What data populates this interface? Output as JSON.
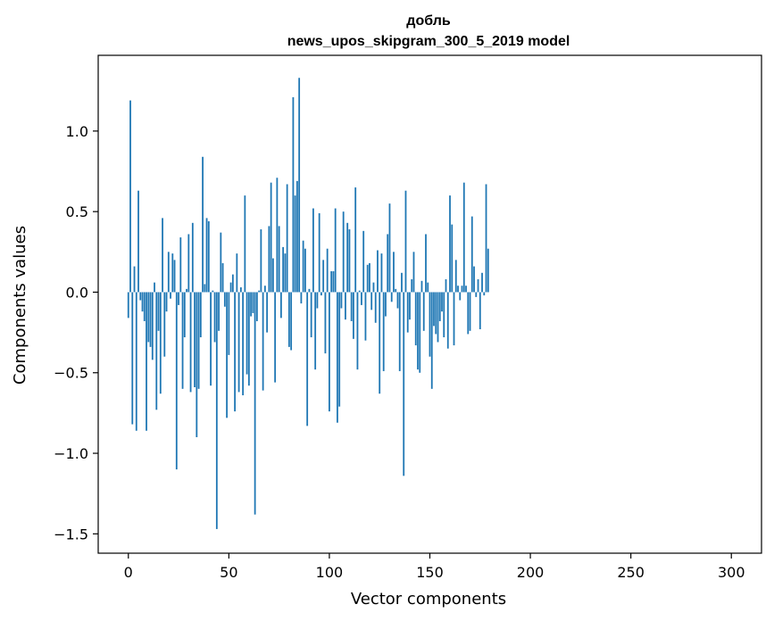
{
  "chart_data": {
    "type": "bar",
    "title": "добль",
    "subtitle": "news_upos_skipgram_300_5_2019 model",
    "xlabel": "Vector components",
    "ylabel": "Components values",
    "xlim": [
      -15,
      315
    ],
    "ylim": [
      -1.62,
      1.47
    ],
    "xticks": [
      0,
      50,
      100,
      150,
      200,
      250,
      300
    ],
    "xtick_labels": [
      "0",
      "50",
      "100",
      "150",
      "200",
      "250",
      "300"
    ],
    "yticks": [
      -1.5,
      -1.0,
      -0.5,
      0.0,
      0.5,
      1.0
    ],
    "ytick_labels": [
      "−1.5",
      "−1.0",
      "−0.5",
      "0.0",
      "0.5",
      "1.0"
    ],
    "bar_color": "#1f77b4",
    "grid": false,
    "legend": "none",
    "values": [
      -0.16,
      1.19,
      -0.82,
      0.16,
      -0.86,
      0.63,
      -0.05,
      -0.12,
      -0.18,
      -0.86,
      -0.31,
      -0.34,
      -0.42,
      0.06,
      -0.73,
      -0.24,
      -0.63,
      0.46,
      -0.4,
      -0.12,
      0.25,
      -0.04,
      0.24,
      0.2,
      -1.1,
      -0.08,
      0.34,
      -0.6,
      -0.28,
      0.02,
      0.36,
      -0.62,
      0.43,
      -0.59,
      -0.9,
      -0.6,
      -0.28,
      0.84,
      0.05,
      0.46,
      0.44,
      -0.58,
      0.01,
      -0.31,
      -1.47,
      -0.24,
      0.37,
      0.18,
      -0.09,
      -0.78,
      -0.39,
      0.06,
      0.11,
      -0.74,
      0.24,
      -0.62,
      0.03,
      -0.64,
      0.6,
      -0.51,
      -0.58,
      -0.15,
      -0.13,
      -1.38,
      -0.18,
      0.01,
      0.39,
      -0.61,
      0.04,
      -0.25,
      0.41,
      0.68,
      0.21,
      -0.56,
      0.71,
      0.41,
      -0.16,
      0.28,
      0.24,
      0.67,
      -0.34,
      -0.36,
      1.21,
      0.6,
      0.69,
      1.33,
      -0.07,
      0.32,
      0.27,
      -0.83,
      0.02,
      -0.28,
      0.52,
      -0.48,
      -0.1,
      0.49,
      -0.02,
      0.2,
      -0.38,
      0.27,
      -0.74,
      0.13,
      0.13,
      0.52,
      -0.81,
      -0.71,
      -0.1,
      0.5,
      -0.17,
      0.43,
      0.39,
      -0.18,
      -0.29,
      0.65,
      -0.48,
      0.01,
      -0.08,
      0.38,
      -0.3,
      0.17,
      0.18,
      -0.11,
      0.06,
      -0.19,
      0.26,
      -0.63,
      0.24,
      -0.49,
      -0.15,
      0.36,
      0.55,
      -0.06,
      0.25,
      0.02,
      -0.1,
      -0.49,
      0.12,
      -1.14,
      0.63,
      -0.25,
      -0.17,
      0.08,
      0.25,
      -0.33,
      -0.48,
      -0.5,
      0.07,
      -0.24,
      0.36,
      0.06,
      -0.4,
      -0.6,
      -0.21,
      -0.26,
      -0.31,
      -0.18,
      -0.12,
      -0.28,
      0.08,
      -0.35,
      0.6,
      0.42,
      -0.33,
      0.2,
      0.04,
      -0.05,
      0.04,
      0.68,
      0.04,
      -0.26,
      -0.24,
      0.47,
      0.16,
      -0.03,
      0.08,
      -0.23,
      0.12,
      -0.02,
      0.67,
      0.27
    ]
  }
}
